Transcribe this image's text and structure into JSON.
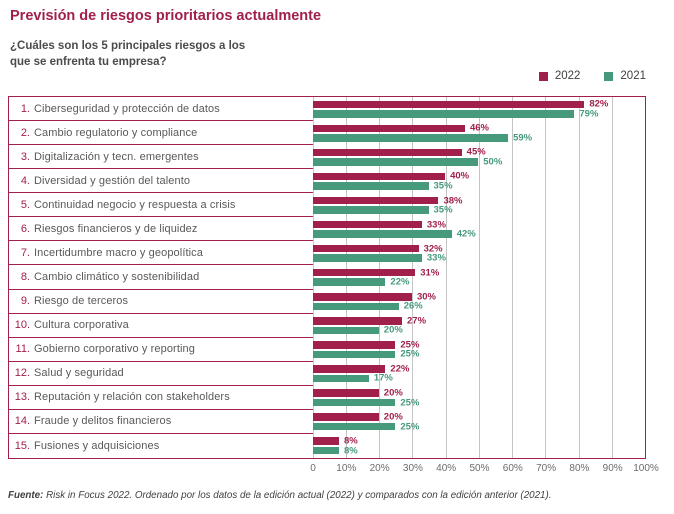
{
  "header": {
    "title": "Previsión de riesgos prioritarios actualmente",
    "subtitle_line1": "¿Cuáles son los 5 principales riesgos a los",
    "subtitle_line2": "que se enfrenta tu empresa?"
  },
  "legend": [
    {
      "label": "2022",
      "color": "#A1204B"
    },
    {
      "label": "2021",
      "color": "#46997B"
    }
  ],
  "chart_data": {
    "type": "bar",
    "orientation": "horizontal",
    "ranks": [
      "1.",
      "2.",
      "3.",
      "4.",
      "5.",
      "6.",
      "7.",
      "8.",
      "9.",
      "10.",
      "11.",
      "12.",
      "13.",
      "14.",
      "15."
    ],
    "categories": [
      "Ciberseguridad y protección de datos",
      "Cambio regulatorio y compliance",
      "Digitalización y tecn. emergentes",
      "Diversidad y gestión del talento",
      "Continuidad negocio y respuesta a crisis",
      "Riesgos financieros y de liquidez",
      "Incertidumbre macro y geopolítica",
      "Cambio climático y sostenibilidad",
      "Riesgo de terceros",
      "Cultura corporativa",
      "Gobierno corporativo y reporting",
      "Salud y seguridad",
      "Reputación y relación con stakeholders",
      "Fraude y delitos financieros",
      "Fusiones y adquisiciones"
    ],
    "series": [
      {
        "name": "2022",
        "color": "#A1204B",
        "values": [
          82,
          46,
          45,
          40,
          38,
          33,
          32,
          31,
          30,
          27,
          25,
          22,
          20,
          20,
          8
        ]
      },
      {
        "name": "2021",
        "color": "#46997B",
        "values": [
          79,
          59,
          50,
          35,
          35,
          42,
          33,
          22,
          26,
          20,
          25,
          17,
          25,
          25,
          8
        ]
      }
    ],
    "value_suffix": "%",
    "xlim": [
      0,
      100
    ],
    "x_ticks": [
      "0",
      "10%",
      "20%",
      "30%",
      "40%",
      "50%",
      "60%",
      "70%",
      "80%",
      "90%",
      "100%"
    ],
    "grid": true,
    "legend_position": "top-right"
  },
  "footer": {
    "source_label": "Fuente:",
    "source_text": " Risk in Focus 2022. Ordenado por los datos de la edición actual (2022) y comparados con la edición anterior (2021)."
  },
  "colors": {
    "maroon": "#A1204B",
    "teal": "#46997B",
    "gridline": "#C4C4C4"
  }
}
